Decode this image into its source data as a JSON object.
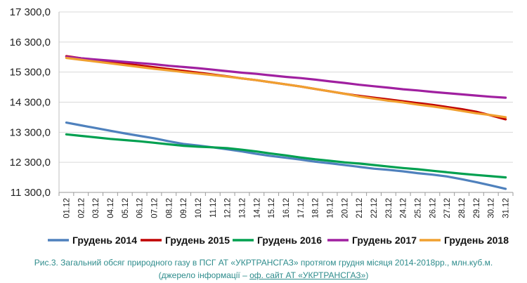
{
  "chart_data": {
    "type": "line",
    "title": "",
    "xlabel": "",
    "ylabel": "",
    "ylim": [
      11300,
      17300
    ],
    "yticks": [
      "11 300,0",
      "12 300,0",
      "13 300,0",
      "14 300,0",
      "15 300,0",
      "16 300,0",
      "17 300,0"
    ],
    "ytick_values": [
      11300,
      12300,
      13300,
      14300,
      15300,
      16300,
      17300
    ],
    "categories": [
      "01.12",
      "02.12",
      "03.12",
      "04.12",
      "05.12",
      "06.12",
      "07.12",
      "08.12",
      "09.12",
      "10.12",
      "11.12",
      "12.12",
      "13.12",
      "14.12",
      "15.12",
      "16.12",
      "17.12",
      "18.12",
      "19.12",
      "20.12",
      "21.12",
      "22.12",
      "23.12",
      "24.12",
      "25.12",
      "26.12",
      "27.12",
      "28.12",
      "29.12",
      "30.12",
      "31.12"
    ],
    "grid": true,
    "legend_position": "bottom",
    "series": [
      {
        "name": "Грудень 2014",
        "color": "#4f81bd",
        "values": [
          13620,
          13530,
          13440,
          13350,
          13260,
          13180,
          13100,
          13000,
          12910,
          12860,
          12800,
          12730,
          12660,
          12580,
          12510,
          12450,
          12390,
          12320,
          12270,
          12210,
          12150,
          12090,
          12050,
          12000,
          11940,
          11890,
          11830,
          11740,
          11640,
          11530,
          11420
        ]
      },
      {
        "name": "Грудень 2015",
        "color": "#c00000",
        "values": [
          15830,
          15760,
          15700,
          15640,
          15580,
          15520,
          15460,
          15400,
          15340,
          15280,
          15220,
          15160,
          15090,
          15030,
          14960,
          14890,
          14820,
          14740,
          14660,
          14580,
          14510,
          14450,
          14390,
          14330,
          14270,
          14210,
          14140,
          14070,
          13980,
          13860,
          13730
        ]
      },
      {
        "name": "Грудень 2016",
        "color": "#00a050",
        "values": [
          13230,
          13180,
          13130,
          13080,
          13040,
          13000,
          12950,
          12900,
          12850,
          12820,
          12800,
          12770,
          12720,
          12660,
          12590,
          12530,
          12460,
          12400,
          12350,
          12300,
          12260,
          12210,
          12160,
          12110,
          12070,
          12020,
          11970,
          11920,
          11880,
          11840,
          11800
        ]
      },
      {
        "name": "Грудень 2017",
        "color": "#a020a0",
        "values": [
          15810,
          15760,
          15720,
          15680,
          15640,
          15600,
          15560,
          15510,
          15470,
          15430,
          15380,
          15330,
          15280,
          15240,
          15190,
          15140,
          15100,
          15050,
          14990,
          14940,
          14880,
          14830,
          14780,
          14730,
          14690,
          14640,
          14600,
          14560,
          14520,
          14480,
          14450
        ]
      },
      {
        "name": "Грудень 2018",
        "color": "#f0a030",
        "values": [
          15770,
          15710,
          15650,
          15590,
          15530,
          15470,
          15410,
          15360,
          15300,
          15250,
          15200,
          15150,
          15090,
          15030,
          14960,
          14890,
          14820,
          14740,
          14660,
          14580,
          14490,
          14420,
          14350,
          14290,
          14220,
          14160,
          14090,
          14010,
          13930,
          13870,
          13800
        ]
      }
    ]
  },
  "caption": {
    "line1": "Рис.3. Загальний обсяг природного газу в ПСГ АТ «УКРТРАНСГАЗ» протягом грудня місяця 2014-2018рр., млн.куб.м.",
    "line2_prefix": "(джерело інформації – ",
    "line2_link": "оф. сайт АТ «УКРТРАНСГАЗ»",
    "line2_suffix": ")"
  }
}
